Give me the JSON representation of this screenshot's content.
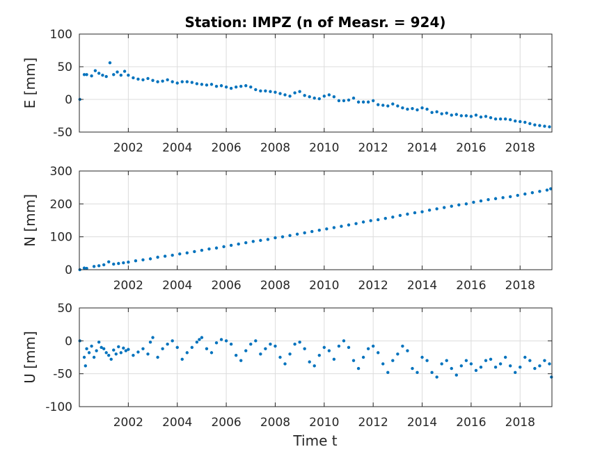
{
  "figure": {
    "title": "Station: IMPZ (n of Measr. = 924)",
    "xlabel": "Time t"
  },
  "colors": {
    "marker": "#0072BD",
    "axis": "#262626",
    "grid": "#dcdcdc",
    "background": "#ffffff"
  },
  "chart_data": [
    {
      "type": "scatter",
      "name": "E",
      "ylabel": "E [mm]",
      "xlim": [
        2000.0,
        2019.3
      ],
      "ylim": [
        -50,
        100
      ],
      "xticks": [
        2002,
        2004,
        2006,
        2008,
        2010,
        2012,
        2014,
        2016,
        2018
      ],
      "xtick_labels": [
        "2002",
        "2004",
        "2006",
        "2008",
        "2010",
        "2012",
        "2014",
        "2016",
        "2018"
      ],
      "yticks": [
        -50,
        0,
        50,
        100
      ],
      "ytick_labels": [
        "-50",
        "0",
        "50",
        "100"
      ],
      "x": [
        2000.02,
        2000.2,
        2000.3,
        2000.5,
        2000.65,
        2000.8,
        2000.95,
        2001.1,
        2001.25,
        2001.4,
        2001.55,
        2001.7,
        2001.85,
        2002.0,
        2002.2,
        2002.4,
        2002.6,
        2002.8,
        2003.0,
        2003.2,
        2003.4,
        2003.6,
        2003.8,
        2004.0,
        2004.2,
        2004.4,
        2004.6,
        2004.8,
        2005.0,
        2005.2,
        2005.4,
        2005.6,
        2005.8,
        2006.0,
        2006.2,
        2006.4,
        2006.6,
        2006.8,
        2007.0,
        2007.2,
        2007.4,
        2007.6,
        2007.8,
        2008.0,
        2008.2,
        2008.4,
        2008.6,
        2008.8,
        2009.0,
        2009.2,
        2009.4,
        2009.6,
        2009.8,
        2010.0,
        2010.2,
        2010.4,
        2010.6,
        2010.8,
        2011.0,
        2011.2,
        2011.4,
        2011.6,
        2011.8,
        2012.0,
        2012.2,
        2012.4,
        2012.6,
        2012.8,
        2013.0,
        2013.2,
        2013.4,
        2013.6,
        2013.8,
        2014.0,
        2014.2,
        2014.4,
        2014.6,
        2014.8,
        2015.0,
        2015.2,
        2015.4,
        2015.6,
        2015.8,
        2016.0,
        2016.2,
        2016.4,
        2016.6,
        2016.8,
        2017.0,
        2017.2,
        2017.4,
        2017.6,
        2017.8,
        2018.0,
        2018.2,
        2018.4,
        2018.6,
        2018.8,
        2019.0,
        2019.2
      ],
      "y": [
        0,
        38,
        38,
        36,
        44,
        40,
        37,
        35,
        56,
        38,
        42,
        37,
        43,
        37,
        33,
        31,
        30,
        32,
        29,
        27,
        28,
        30,
        27,
        25,
        27,
        27,
        26,
        24,
        23,
        22,
        23,
        20,
        21,
        19,
        17,
        19,
        20,
        21,
        19,
        15,
        13,
        13,
        12,
        11,
        9,
        7,
        5,
        10,
        12,
        6,
        4,
        2,
        1,
        5,
        7,
        4,
        -2,
        -2,
        -1,
        2,
        -4,
        -4,
        -4,
        -2,
        -8,
        -9,
        -10,
        -7,
        -10,
        -13,
        -15,
        -14,
        -16,
        -13,
        -15,
        -20,
        -19,
        -22,
        -21,
        -24,
        -23,
        -25,
        -25,
        -26,
        -24,
        -27,
        -26,
        -28,
        -30,
        -30,
        -30,
        -31,
        -33,
        -34,
        -35,
        -37,
        -39,
        -40,
        -41,
        -42
      ]
    },
    {
      "type": "scatter",
      "name": "N",
      "ylabel": "N [mm]",
      "xlim": [
        2000.0,
        2019.3
      ],
      "ylim": [
        0,
        300
      ],
      "xticks": [
        2002,
        2004,
        2006,
        2008,
        2010,
        2012,
        2014,
        2016,
        2018
      ],
      "xtick_labels": [
        "2002",
        "2004",
        "2006",
        "2008",
        "2010",
        "2012",
        "2014",
        "2016",
        "2018"
      ],
      "yticks": [
        0,
        100,
        200,
        300
      ],
      "ytick_labels": [
        "0",
        "100",
        "200",
        "300"
      ],
      "x": [
        2000.02,
        2000.2,
        2000.3,
        2000.6,
        2000.8,
        2001.0,
        2001.2,
        2001.4,
        2001.6,
        2001.8,
        2002.0,
        2002.3,
        2002.6,
        2002.9,
        2003.2,
        2003.5,
        2003.8,
        2004.1,
        2004.4,
        2004.7,
        2005.0,
        2005.3,
        2005.6,
        2005.9,
        2006.2,
        2006.5,
        2006.8,
        2007.1,
        2007.4,
        2007.7,
        2008.0,
        2008.3,
        2008.6,
        2008.9,
        2009.2,
        2009.5,
        2009.8,
        2010.1,
        2010.4,
        2010.7,
        2011.0,
        2011.3,
        2011.6,
        2011.9,
        2012.2,
        2012.5,
        2012.8,
        2013.1,
        2013.4,
        2013.7,
        2014.0,
        2014.3,
        2014.6,
        2014.9,
        2015.2,
        2015.5,
        2015.8,
        2016.1,
        2016.4,
        2016.7,
        2017.0,
        2017.3,
        2017.6,
        2017.9,
        2018.2,
        2018.5,
        2018.8,
        2019.1,
        2019.25
      ],
      "y": [
        0,
        5,
        4,
        10,
        12,
        15,
        24,
        17,
        19,
        21,
        23,
        27,
        30,
        33,
        38,
        41,
        44,
        48,
        51,
        55,
        59,
        63,
        66,
        70,
        74,
        78,
        82,
        86,
        89,
        92,
        97,
        100,
        104,
        108,
        112,
        116,
        120,
        124,
        128,
        132,
        136,
        140,
        145,
        149,
        152,
        156,
        160,
        165,
        169,
        173,
        176,
        181,
        185,
        189,
        193,
        197,
        200,
        205,
        209,
        213,
        216,
        219,
        222,
        226,
        230,
        234,
        238,
        242,
        246
      ]
    },
    {
      "type": "scatter",
      "name": "U",
      "ylabel": "U [mm]",
      "xlim": [
        2000.0,
        2019.3
      ],
      "ylim": [
        -100,
        50
      ],
      "xticks": [
        2002,
        2004,
        2006,
        2008,
        2010,
        2012,
        2014,
        2016,
        2018
      ],
      "xtick_labels": [
        "2002",
        "2004",
        "2006",
        "2008",
        "2010",
        "2012",
        "2014",
        "2016",
        "2018"
      ],
      "yticks": [
        -100,
        -50,
        0,
        50
      ],
      "ytick_labels": [
        "-100",
        "-50",
        "0",
        "50"
      ],
      "x": [
        2000.02,
        2000.2,
        2000.25,
        2000.3,
        2000.4,
        2000.5,
        2000.6,
        2000.7,
        2000.8,
        2000.9,
        2001.0,
        2001.1,
        2001.2,
        2001.3,
        2001.4,
        2001.5,
        2001.6,
        2001.7,
        2001.8,
        2001.9,
        2002.0,
        2002.2,
        2002.4,
        2002.6,
        2002.8,
        2002.9,
        2003.0,
        2003.2,
        2003.4,
        2003.6,
        2003.8,
        2004.0,
        2004.2,
        2004.4,
        2004.6,
        2004.8,
        2004.9,
        2005.0,
        2005.2,
        2005.4,
        2005.6,
        2005.8,
        2006.0,
        2006.2,
        2006.4,
        2006.6,
        2006.8,
        2007.0,
        2007.2,
        2007.4,
        2007.6,
        2007.8,
        2008.0,
        2008.2,
        2008.4,
        2008.6,
        2008.8,
        2009.0,
        2009.2,
        2009.4,
        2009.6,
        2009.8,
        2010.0,
        2010.2,
        2010.4,
        2010.6,
        2010.8,
        2011.0,
        2011.2,
        2011.4,
        2011.6,
        2011.8,
        2012.0,
        2012.2,
        2012.4,
        2012.6,
        2012.8,
        2013.0,
        2013.2,
        2013.4,
        2013.6,
        2013.8,
        2014.0,
        2014.2,
        2014.4,
        2014.6,
        2014.8,
        2015.0,
        2015.2,
        2015.4,
        2015.6,
        2015.8,
        2016.0,
        2016.2,
        2016.4,
        2016.6,
        2016.8,
        2017.0,
        2017.2,
        2017.4,
        2017.6,
        2017.8,
        2018.0,
        2018.2,
        2018.4,
        2018.6,
        2018.8,
        2019.0,
        2019.2,
        2019.28
      ],
      "y": [
        0,
        -25,
        -38,
        -12,
        -18,
        -8,
        -25,
        -15,
        -2,
        -10,
        -12,
        -18,
        -22,
        -28,
        -14,
        -20,
        -9,
        -18,
        -11,
        -15,
        -13,
        -22,
        -17,
        -12,
        -20,
        -2,
        5,
        -25,
        -12,
        -5,
        0,
        -10,
        -28,
        -18,
        -10,
        -2,
        2,
        5,
        -12,
        -18,
        -3,
        2,
        0,
        -5,
        -22,
        -30,
        -15,
        -5,
        0,
        -20,
        -12,
        -5,
        -8,
        -25,
        -35,
        -20,
        -5,
        -2,
        -12,
        -32,
        -38,
        -22,
        -10,
        -15,
        -28,
        -8,
        0,
        -10,
        -30,
        -42,
        -25,
        -12,
        -8,
        -18,
        -35,
        -48,
        -30,
        -20,
        -8,
        -15,
        -42,
        -48,
        -25,
        -30,
        -48,
        -55,
        -35,
        -30,
        -42,
        -52,
        -38,
        -30,
        -35,
        -45,
        -40,
        -30,
        -28,
        -40,
        -35,
        -25,
        -38,
        -48,
        -40,
        -25,
        -30,
        -42,
        -38,
        -30,
        -35,
        -55
      ]
    }
  ]
}
